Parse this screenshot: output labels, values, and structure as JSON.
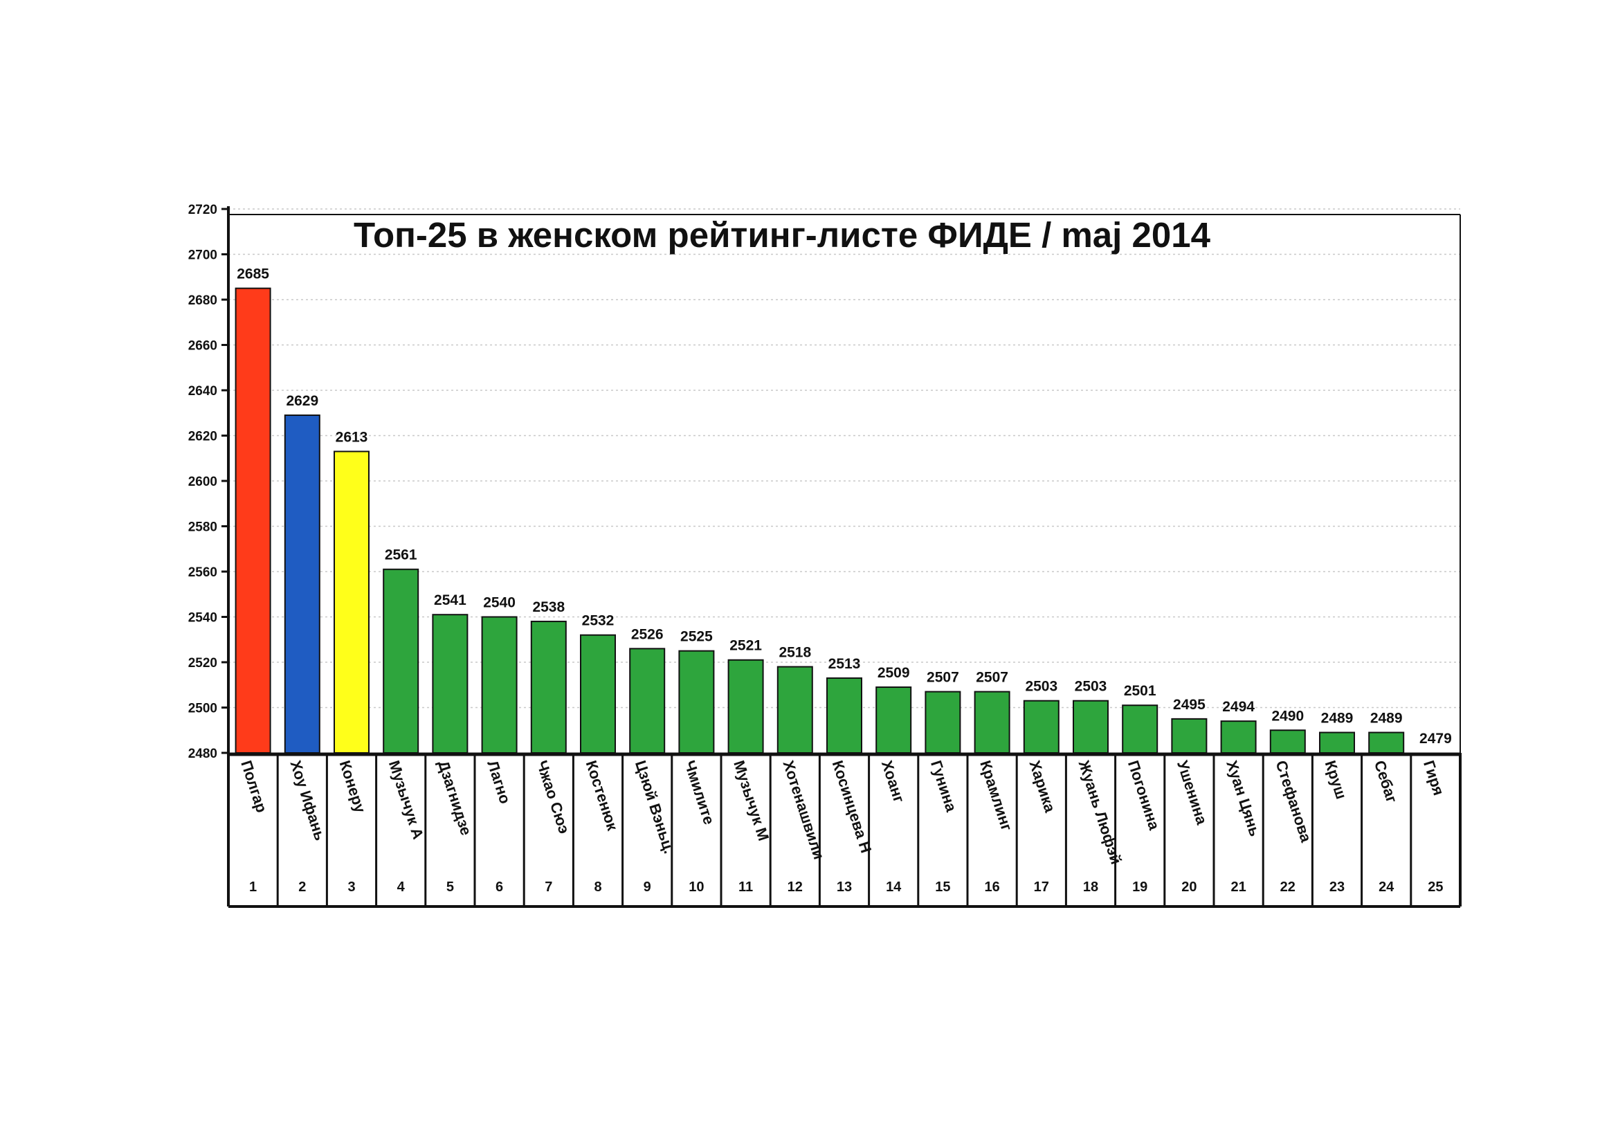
{
  "chart_data": {
    "type": "bar",
    "title": "Топ-25 в женском рейтинг-листе ФИДЕ / maj 2014",
    "xlabel": "",
    "ylabel": "",
    "ylim": [
      2480,
      2720
    ],
    "yticks": [
      2480,
      2500,
      2520,
      2540,
      2560,
      2580,
      2600,
      2620,
      2640,
      2660,
      2680,
      2700,
      2720
    ],
    "grid": true,
    "legend": "none",
    "colors": {
      "first": "#ff3b1a",
      "second": "#1f5cc2",
      "third": "#ffff1a",
      "rest": "#2ea53d",
      "outline": "#111111",
      "grid": "#c8c8c8"
    },
    "categories": [
      "Полгар",
      "Хоу Ифань",
      "Конеру",
      "Музычук А",
      "Дзагнидзе",
      "Лагно",
      "Чжао Сюэ",
      "Костенюк",
      "Цзюй Вэньц.",
      "Чмилите",
      "Музычук М",
      "Хотенашвили",
      "Косинцева Н",
      "Хоанг",
      "Гунина",
      "Крамлинг",
      "Харика",
      "Жуань Люфэй",
      "Погонина",
      "Ушенина",
      "Хуан Цянь",
      "Стефанова",
      "Круш",
      "Себаг",
      "Гиря"
    ],
    "ranks": [
      "1",
      "2",
      "3",
      "4",
      "5",
      "6",
      "7",
      "8",
      "9",
      "10",
      "11",
      "12",
      "13",
      "14",
      "15",
      "16",
      "17",
      "18",
      "19",
      "20",
      "21",
      "22",
      "23",
      "24",
      "25"
    ],
    "values": [
      2685,
      2629,
      2613,
      2561,
      2541,
      2540,
      2538,
      2532,
      2526,
      2525,
      2521,
      2518,
      2513,
      2509,
      2507,
      2507,
      2503,
      2503,
      2501,
      2495,
      2494,
      2490,
      2489,
      2489,
      2479
    ]
  }
}
